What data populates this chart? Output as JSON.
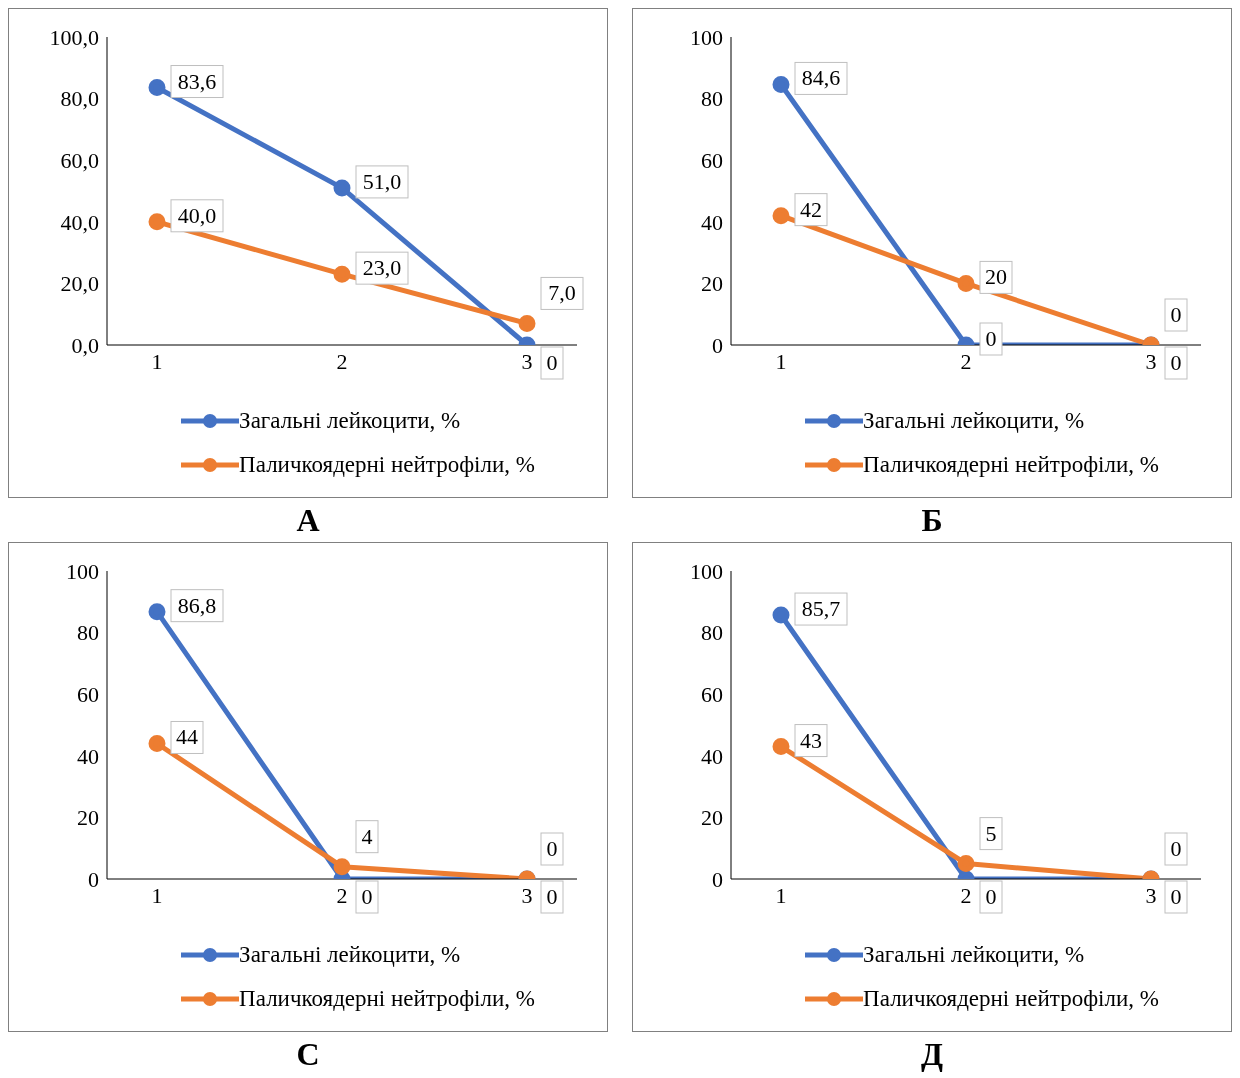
{
  "chart_data": [
    {
      "type": "line",
      "title": "А",
      "categories": [
        "1",
        "2",
        "3"
      ],
      "ylim": [
        0,
        100
      ],
      "yticks": [
        {
          "value": 0,
          "label": "0,0"
        },
        {
          "value": 20,
          "label": "20,0"
        },
        {
          "value": 40,
          "label": "40,0"
        },
        {
          "value": 60,
          "label": "60,0"
        },
        {
          "value": 80,
          "label": "80,0"
        },
        {
          "value": 100,
          "label": "100,0"
        }
      ],
      "grid": false,
      "legend": "bottom",
      "marker": "circle",
      "line_style": "solid",
      "series": [
        {
          "name": "Загальні лейкоцити, %",
          "color": "#4472c4",
          "values": [
            83.6,
            51,
            0
          ],
          "value_labels": [
            "83,6",
            "51,0",
            "0"
          ]
        },
        {
          "name": "Паличкоядерні нейтрофіли, %",
          "color": "#ed7d31",
          "values": [
            40,
            23,
            7
          ],
          "value_labels": [
            "40,0",
            "23,0",
            "7,0"
          ]
        }
      ]
    },
    {
      "type": "line",
      "title": "Б",
      "categories": [
        "1",
        "2",
        "3"
      ],
      "ylim": [
        0,
        100
      ],
      "yticks": [
        0,
        20,
        40,
        60,
        80,
        100
      ],
      "grid": false,
      "legend": "bottom",
      "marker": "circle",
      "line_style": "solid",
      "series": [
        {
          "name": "Загальні лейкоцити, %",
          "color": "#4472c4",
          "values": [
            84.6,
            0,
            0
          ],
          "value_labels": [
            "84,6",
            "0",
            "0"
          ]
        },
        {
          "name": "Паличкоядерні нейтрофіли, %",
          "color": "#ed7d31",
          "values": [
            42,
            20,
            0
          ],
          "value_labels": [
            "42",
            "20",
            "0"
          ]
        }
      ]
    },
    {
      "type": "line",
      "title": "С",
      "categories": [
        "1",
        "2",
        "3"
      ],
      "ylim": [
        0,
        100
      ],
      "yticks": [
        0,
        20,
        40,
        60,
        80,
        100
      ],
      "grid": false,
      "legend": "bottom",
      "marker": "circle",
      "line_style": "solid",
      "series": [
        {
          "name": "Загальні лейкоцити, %",
          "color": "#4472c4",
          "values": [
            86.8,
            0,
            0
          ],
          "value_labels": [
            "86,8",
            "0",
            "0"
          ]
        },
        {
          "name": "Паличкоядерні нейтрофіли, %",
          "color": "#ed7d31",
          "values": [
            44,
            4,
            0
          ],
          "value_labels": [
            "44",
            "4",
            "0"
          ]
        }
      ]
    },
    {
      "type": "line",
      "title": "Д",
      "categories": [
        "1",
        "2",
        "3"
      ],
      "ylim": [
        0,
        100
      ],
      "yticks": [
        0,
        20,
        40,
        60,
        80,
        100
      ],
      "grid": false,
      "legend": "bottom",
      "marker": "circle",
      "line_style": "solid",
      "series": [
        {
          "name": "Загальні лейкоцити, %",
          "color": "#4472c4",
          "values": [
            85.7,
            0,
            0
          ],
          "value_labels": [
            "85,7",
            "0",
            "0"
          ]
        },
        {
          "name": "Паличкоядерні нейтрофіли, %",
          "color": "#ed7d31",
          "values": [
            43,
            5,
            0
          ],
          "value_labels": [
            "43",
            "5",
            "0"
          ]
        }
      ]
    }
  ]
}
